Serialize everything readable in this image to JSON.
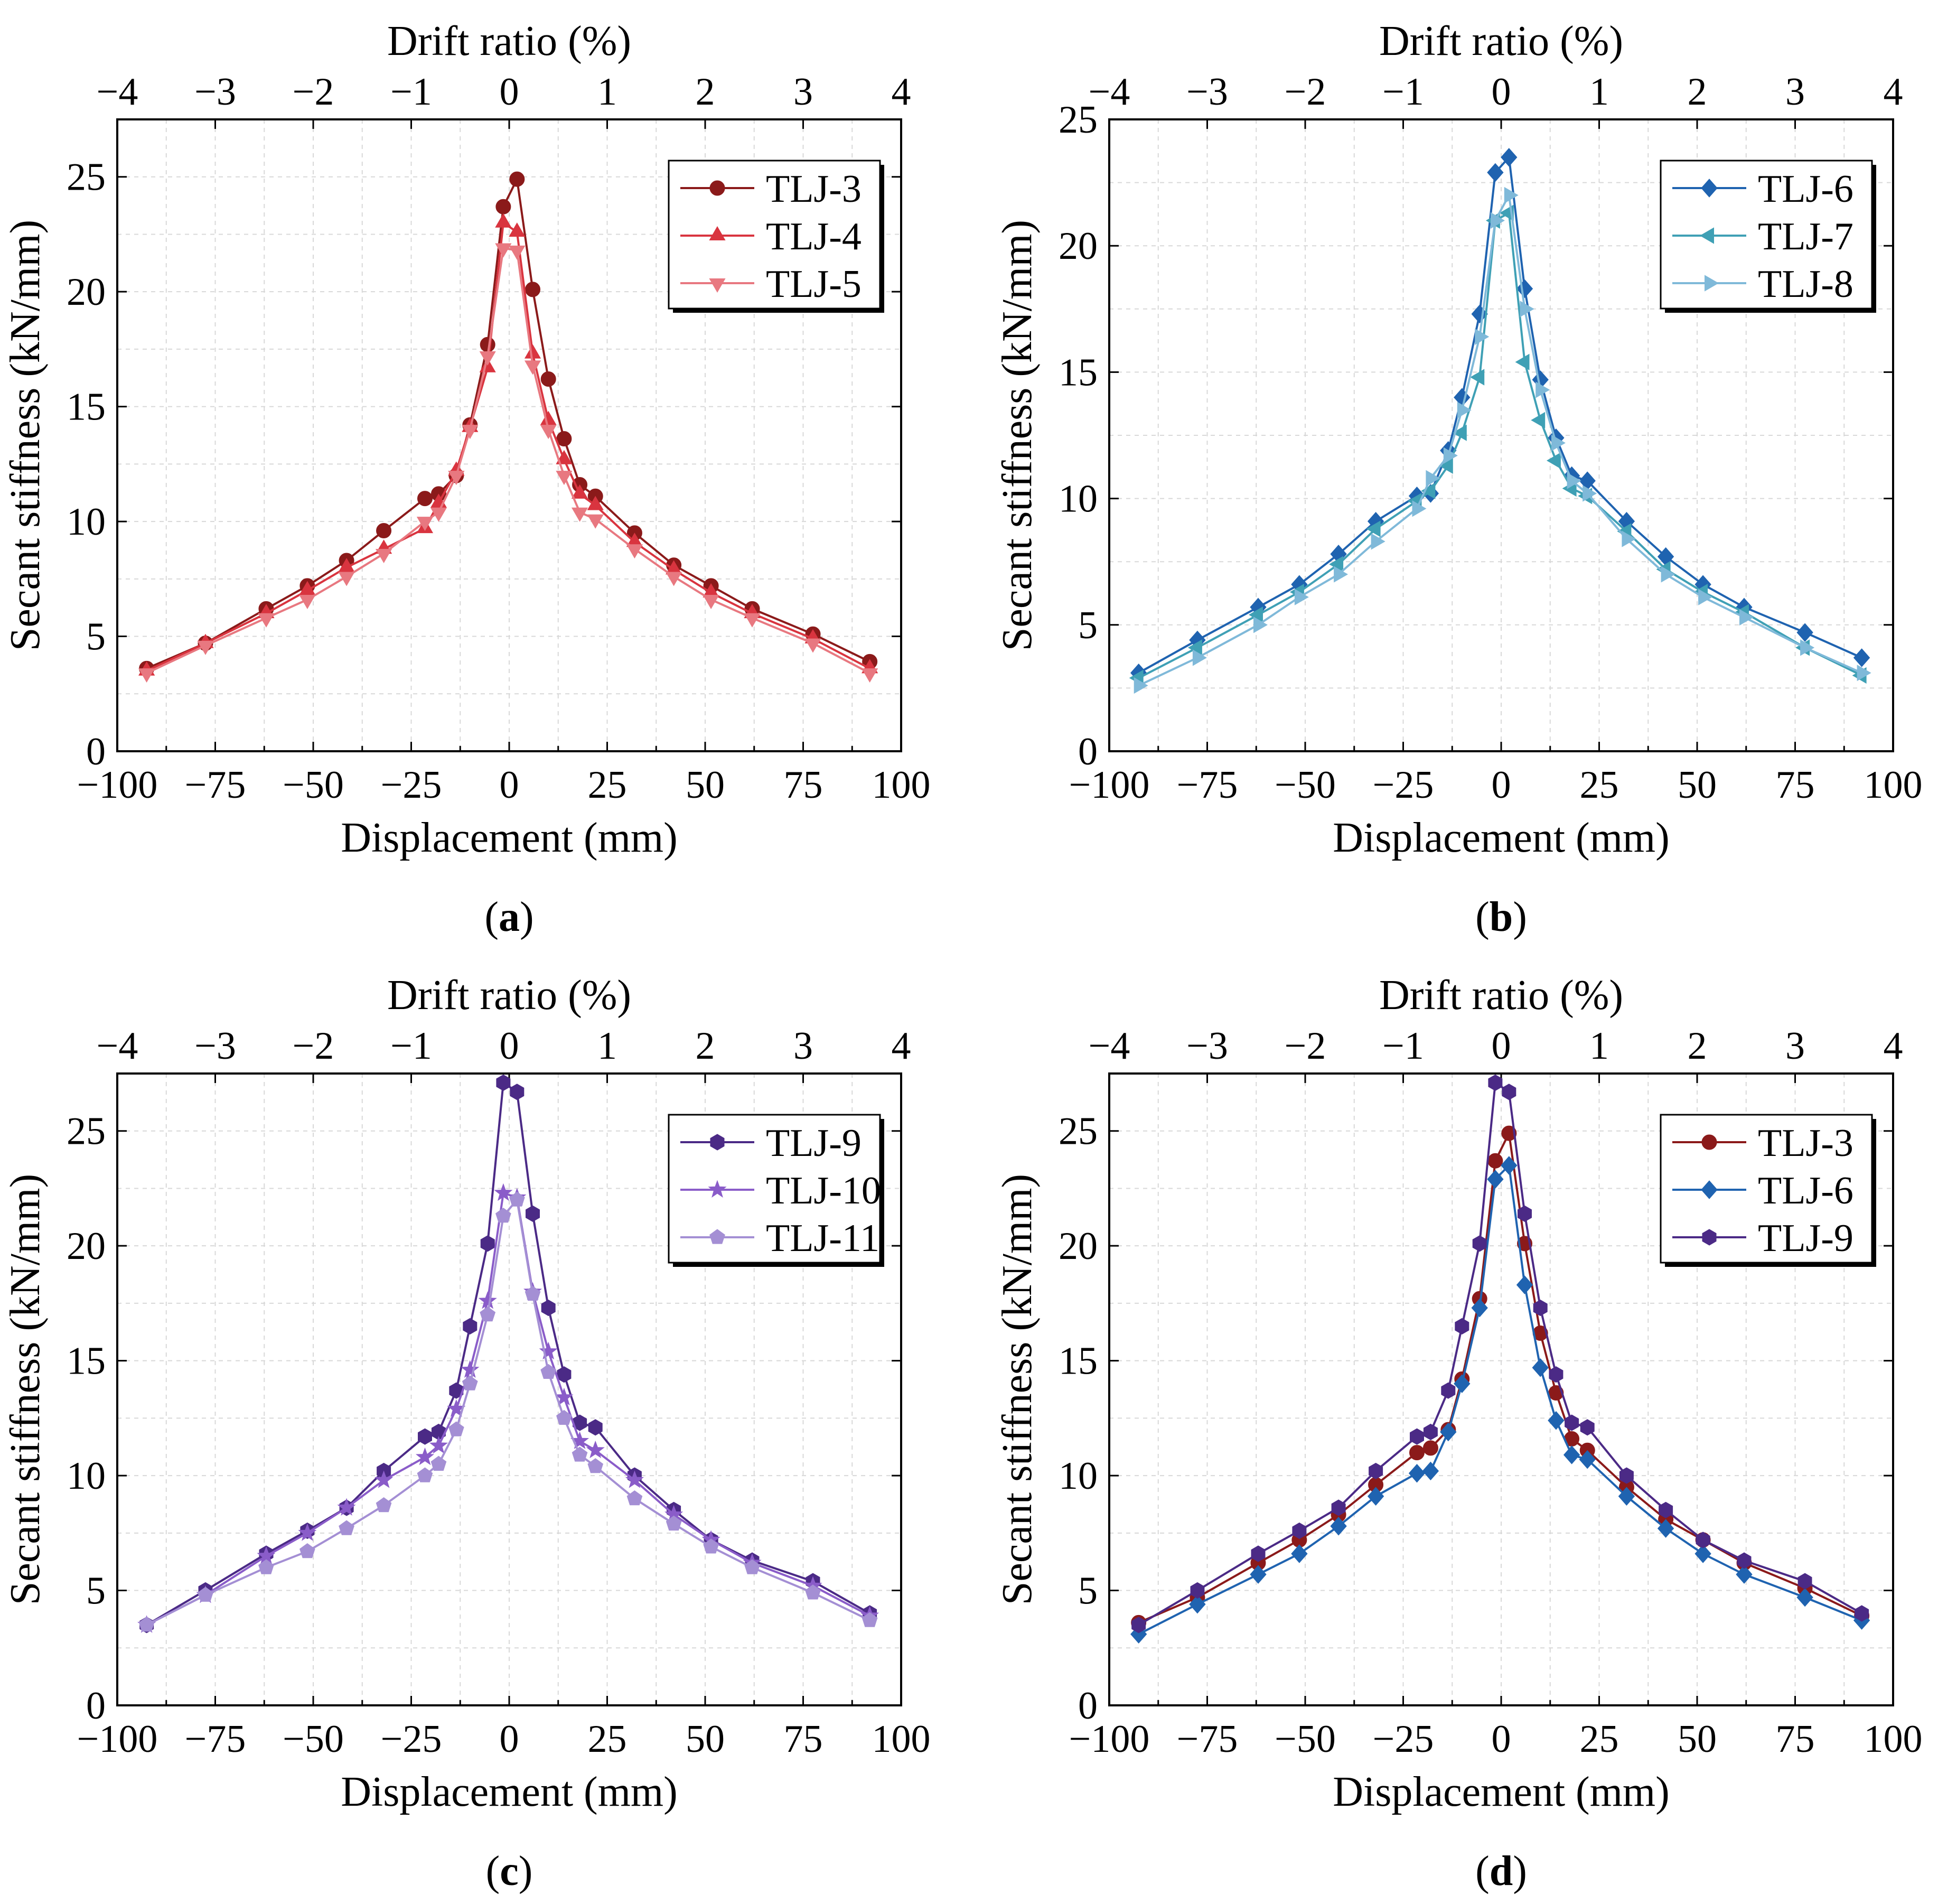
{
  "chart_data": [
    {
      "panel_label": "a",
      "type": "line",
      "xlabel": "Displacement (mm)",
      "x2label": "Drift ratio (%)",
      "ylabel": "Secant stiffness (kN/mm)",
      "xlim": [
        -100,
        100
      ],
      "x2lim": [
        -4,
        4
      ],
      "ylim": [
        0,
        27.5
      ],
      "xticks": [
        -100,
        -75,
        -50,
        -25,
        0,
        25,
        50,
        75,
        100
      ],
      "x2ticks": [
        -4,
        -3,
        -2,
        -1,
        0,
        1,
        2,
        3,
        4
      ],
      "yticks": [
        0,
        5,
        10,
        15,
        20,
        25
      ],
      "grid": true,
      "legend_position": "top-right",
      "series": [
        {
          "name": "TLJ-3",
          "color": "#8B1A1A",
          "marker": "circle",
          "x": [
            -92.5,
            -77.5,
            -62,
            -51.5,
            -41.5,
            -32,
            -21.5,
            -18,
            -13.5,
            -10,
            -5.5,
            -1.5,
            2,
            6,
            10,
            14,
            18,
            22,
            32,
            42,
            51.5,
            62,
            77.5,
            92
          ],
          "y": [
            3.6,
            4.7,
            6.2,
            7.2,
            8.3,
            9.6,
            11.0,
            11.2,
            12.0,
            14.2,
            17.7,
            23.7,
            24.9,
            20.1,
            16.2,
            13.6,
            11.6,
            11.1,
            9.5,
            8.1,
            7.2,
            6.2,
            5.1,
            3.9
          ]
        },
        {
          "name": "TLJ-4",
          "color": "#D9343F",
          "marker": "triangle-up",
          "x": [
            -92.5,
            -77.5,
            -62,
            -51.5,
            -41.5,
            -32,
            -21.5,
            -18,
            -13.5,
            -10,
            -5.5,
            -1.5,
            2,
            6,
            10,
            14,
            18,
            22,
            32,
            42,
            51.5,
            62,
            77.5,
            92
          ],
          "y": [
            3.5,
            4.7,
            6.0,
            7.0,
            8.0,
            8.8,
            9.7,
            10.8,
            12.2,
            14.1,
            16.7,
            23.0,
            22.6,
            17.3,
            14.4,
            12.7,
            11.2,
            10.7,
            9.1,
            7.9,
            6.9,
            6.0,
            4.9,
            3.6
          ]
        },
        {
          "name": "TLJ-5",
          "color": "#E87880",
          "marker": "triangle-down",
          "x": [
            -92.5,
            -77.5,
            -62,
            -51.5,
            -41.5,
            -32,
            -21.5,
            -18,
            -13.5,
            -10,
            -5.5,
            -1.5,
            2,
            6,
            10,
            14,
            18,
            22,
            32,
            42,
            51.5,
            62,
            77.5,
            92
          ],
          "y": [
            3.4,
            4.6,
            5.8,
            6.6,
            7.6,
            8.6,
            10.0,
            10.4,
            12.0,
            14.0,
            17.2,
            21.9,
            21.8,
            16.8,
            14.0,
            12.0,
            10.4,
            10.1,
            8.8,
            7.6,
            6.6,
            5.8,
            4.7,
            3.4
          ]
        }
      ]
    },
    {
      "panel_label": "b",
      "type": "line",
      "xlabel": "Displacement (mm)",
      "x2label": "Drift ratio (%)",
      "ylabel": "Secant stiffness (kN/mm)",
      "xlim": [
        -100,
        100
      ],
      "x2lim": [
        -4,
        4
      ],
      "ylim": [
        0,
        25
      ],
      "xticks": [
        -100,
        -75,
        -50,
        -25,
        0,
        25,
        50,
        75,
        100
      ],
      "x2ticks": [
        -4,
        -3,
        -2,
        -1,
        0,
        1,
        2,
        3,
        4
      ],
      "yticks": [
        0,
        5,
        10,
        15,
        20,
        25
      ],
      "grid": true,
      "legend_position": "top-right",
      "series": [
        {
          "name": "TLJ-6",
          "color": "#1F63B0",
          "marker": "diamond",
          "x": [
            -92.5,
            -77.5,
            -62,
            -51.5,
            -41.5,
            -32,
            -21.5,
            -18,
            -13.5,
            -10,
            -5.5,
            -1.5,
            2,
            6,
            10,
            14,
            18,
            22,
            32,
            42,
            51.5,
            62,
            77.5,
            92
          ],
          "y": [
            3.1,
            4.4,
            5.7,
            6.6,
            7.8,
            9.1,
            10.1,
            10.2,
            11.9,
            14.0,
            17.3,
            22.9,
            23.5,
            18.3,
            14.7,
            12.4,
            10.9,
            10.7,
            9.1,
            7.7,
            6.6,
            5.7,
            4.7,
            3.7
          ]
        },
        {
          "name": "TLJ-7",
          "color": "#3FA0B5",
          "marker": "triangle-left",
          "x": [
            -92.5,
            -77.5,
            -62,
            -51.5,
            -41.5,
            -32,
            -21.5,
            -18,
            -13.5,
            -10,
            -5.5,
            -1.5,
            2,
            6,
            10,
            14,
            18,
            22,
            32,
            42,
            51.5,
            62,
            77.5,
            92
          ],
          "y": [
            2.9,
            4.1,
            5.4,
            6.3,
            7.4,
            8.8,
            9.9,
            10.3,
            11.3,
            12.6,
            14.8,
            21.0,
            21.3,
            15.4,
            13.1,
            11.5,
            10.4,
            10.1,
            8.7,
            7.2,
            6.3,
            5.5,
            4.1,
            3.0
          ]
        },
        {
          "name": "TLJ-8",
          "color": "#7FB9D9",
          "marker": "triangle-right",
          "x": [
            -92.5,
            -77.5,
            -62,
            -51.5,
            -41.5,
            -32,
            -21.5,
            -18,
            -13.5,
            -10,
            -5.5,
            -1.5,
            2,
            6,
            10,
            14,
            18,
            22,
            32,
            42,
            51.5,
            62,
            77.5,
            92
          ],
          "y": [
            2.6,
            3.7,
            5.0,
            6.1,
            7.0,
            8.3,
            9.6,
            10.8,
            11.7,
            13.5,
            16.4,
            21.0,
            22.0,
            17.5,
            14.3,
            12.2,
            10.7,
            10.2,
            8.4,
            7.0,
            6.1,
            5.3,
            4.1,
            3.1
          ]
        }
      ]
    },
    {
      "panel_label": "c",
      "type": "line",
      "xlabel": "Displacement (mm)",
      "x2label": "Drift ratio (%)",
      "ylabel": "Secant stiffness (kN/mm)",
      "xlim": [
        -100,
        100
      ],
      "x2lim": [
        -4,
        4
      ],
      "ylim": [
        0,
        27.5
      ],
      "xticks": [
        -100,
        -75,
        -50,
        -25,
        0,
        25,
        50,
        75,
        100
      ],
      "x2ticks": [
        -4,
        -3,
        -2,
        -1,
        0,
        1,
        2,
        3,
        4
      ],
      "yticks": [
        0,
        5,
        10,
        15,
        20,
        25
      ],
      "grid": true,
      "legend_position": "top-right",
      "series": [
        {
          "name": "TLJ-9",
          "color": "#4B2A86",
          "marker": "hexagon",
          "x": [
            -92.5,
            -77.5,
            -62,
            -51.5,
            -41.5,
            -32,
            -21.5,
            -18,
            -13.5,
            -10,
            -5.5,
            -1.5,
            2,
            6,
            10,
            14,
            18,
            22,
            32,
            42,
            51.5,
            62,
            77.5,
            92
          ],
          "y": [
            3.5,
            5.0,
            6.6,
            7.6,
            8.6,
            10.2,
            11.7,
            11.9,
            13.7,
            16.5,
            20.1,
            27.1,
            26.7,
            21.4,
            17.3,
            14.4,
            12.3,
            12.1,
            10.0,
            8.5,
            7.2,
            6.3,
            5.4,
            4.0
          ]
        },
        {
          "name": "TLJ-10",
          "color": "#8A5CC9",
          "marker": "star",
          "x": [
            -92.5,
            -77.5,
            -62,
            -51.5,
            -41.5,
            -32,
            -21.5,
            -18,
            -13.5,
            -10,
            -5.5,
            -1.5,
            2,
            6,
            10,
            14,
            18,
            22,
            32,
            42,
            51.5,
            62,
            77.5,
            92
          ],
          "y": [
            3.5,
            4.8,
            6.5,
            7.5,
            8.6,
            9.8,
            10.8,
            11.3,
            12.9,
            14.6,
            17.6,
            22.3,
            22.1,
            18.0,
            15.4,
            13.4,
            11.5,
            11.1,
            9.8,
            8.3,
            7.2,
            6.2,
            5.2,
            3.9
          ]
        },
        {
          "name": "TLJ-11",
          "color": "#A48FD4",
          "marker": "pentagon",
          "x": [
            -92.5,
            -77.5,
            -62,
            -51.5,
            -41.5,
            -32,
            -21.5,
            -18,
            -13.5,
            -10,
            -5.5,
            -1.5,
            2,
            6,
            10,
            14,
            18,
            22,
            32,
            42,
            51.5,
            62,
            77.5,
            92
          ],
          "y": [
            3.5,
            4.8,
            6.0,
            6.7,
            7.7,
            8.7,
            10.0,
            10.5,
            12.0,
            14.0,
            17.0,
            21.3,
            22.0,
            17.9,
            14.5,
            12.5,
            10.9,
            10.4,
            9.0,
            7.9,
            6.9,
            6.0,
            4.9,
            3.7
          ]
        }
      ]
    },
    {
      "panel_label": "d",
      "type": "line",
      "xlabel": "Displacement (mm)",
      "x2label": "Drift ratio (%)",
      "ylabel": "Secant stiffness (kN/mm)",
      "xlim": [
        -100,
        100
      ],
      "x2lim": [
        -4,
        4
      ],
      "ylim": [
        0,
        27.5
      ],
      "xticks": [
        -100,
        -75,
        -50,
        -25,
        0,
        25,
        50,
        75,
        100
      ],
      "x2ticks": [
        -4,
        -3,
        -2,
        -1,
        0,
        1,
        2,
        3,
        4
      ],
      "yticks": [
        0,
        5,
        10,
        15,
        20,
        25
      ],
      "grid": true,
      "legend_position": "top-right",
      "series": [
        {
          "name": "TLJ-3",
          "color": "#8B1A1A",
          "marker": "circle",
          "x": [
            -92.5,
            -77.5,
            -62,
            -51.5,
            -41.5,
            -32,
            -21.5,
            -18,
            -13.5,
            -10,
            -5.5,
            -1.5,
            2,
            6,
            10,
            14,
            18,
            22,
            32,
            42,
            51.5,
            62,
            77.5,
            92
          ],
          "y": [
            3.6,
            4.7,
            6.2,
            7.2,
            8.3,
            9.6,
            11.0,
            11.2,
            12.0,
            14.2,
            17.7,
            23.7,
            24.9,
            20.1,
            16.2,
            13.6,
            11.6,
            11.1,
            9.5,
            8.1,
            7.2,
            6.2,
            5.1,
            3.9
          ]
        },
        {
          "name": "TLJ-6",
          "color": "#1F63B0",
          "marker": "diamond",
          "x": [
            -92.5,
            -77.5,
            -62,
            -51.5,
            -41.5,
            -32,
            -21.5,
            -18,
            -13.5,
            -10,
            -5.5,
            -1.5,
            2,
            6,
            10,
            14,
            18,
            22,
            32,
            42,
            51.5,
            62,
            77.5,
            92
          ],
          "y": [
            3.1,
            4.4,
            5.7,
            6.6,
            7.8,
            9.1,
            10.1,
            10.2,
            11.9,
            14.0,
            17.3,
            22.9,
            23.5,
            18.3,
            14.7,
            12.4,
            10.9,
            10.7,
            9.1,
            7.7,
            6.6,
            5.7,
            4.7,
            3.7
          ]
        },
        {
          "name": "TLJ-9",
          "color": "#4B2A86",
          "marker": "hexagon",
          "x": [
            -92.5,
            -77.5,
            -62,
            -51.5,
            -41.5,
            -32,
            -21.5,
            -18,
            -13.5,
            -10,
            -5.5,
            -1.5,
            2,
            6,
            10,
            14,
            18,
            22,
            32,
            42,
            51.5,
            62,
            77.5,
            92
          ],
          "y": [
            3.5,
            5.0,
            6.6,
            7.6,
            8.6,
            10.2,
            11.7,
            11.9,
            13.7,
            16.5,
            20.1,
            27.1,
            26.7,
            21.4,
            17.3,
            14.4,
            12.3,
            12.1,
            10.0,
            8.5,
            7.2,
            6.3,
            5.4,
            4.0
          ]
        }
      ]
    }
  ]
}
